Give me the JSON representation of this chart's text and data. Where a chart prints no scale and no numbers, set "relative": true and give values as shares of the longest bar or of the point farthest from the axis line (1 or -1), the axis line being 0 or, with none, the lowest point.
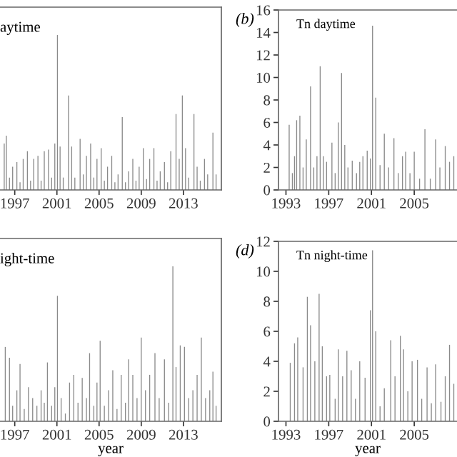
{
  "chart_data": [
    {
      "type": "bar",
      "relative": true,
      "tick_labels": "x",
      "annotations": [
        "aytime"
      ],
      "grid": false,
      "xlim": [
        1995.6,
        2016.6
      ],
      "xticks": [
        1997,
        2001,
        2005,
        2009,
        2013
      ],
      "x": [
        1996.0,
        1996.2,
        1996.5,
        1996.8,
        1997.2,
        1997.5,
        1997.8,
        1998.2,
        1998.5,
        1998.8,
        1999.2,
        1999.5,
        1999.8,
        2000.2,
        2000.5,
        2000.8,
        2001.05,
        2001.3,
        2001.6,
        2002.1,
        2002.4,
        2002.7,
        2003.2,
        2003.5,
        2003.8,
        2004.2,
        2004.5,
        2004.8,
        2005.2,
        2005.5,
        2005.8,
        2006.2,
        2006.5,
        2006.8,
        2007.2,
        2007.5,
        2007.8,
        2008.2,
        2008.5,
        2008.8,
        2009.2,
        2009.5,
        2009.8,
        2010.2,
        2010.5,
        2010.8,
        2011.2,
        2011.5,
        2011.8,
        2012.3,
        2012.6,
        2012.9,
        2013.2,
        2013.5,
        2014.0,
        2014.3,
        2014.6,
        2015.0,
        2015.3,
        2015.8,
        2016.1
      ],
      "series": [
        {
          "color": "#8a8a8a",
          "values": [
            0.3,
            0.35,
            0.08,
            0.15,
            0.18,
            0.05,
            0.2,
            0.25,
            0.06,
            0.2,
            0.22,
            0.06,
            0.25,
            0.26,
            0.08,
            0.3,
            1.0,
            0.28,
            0.08,
            0.61,
            0.28,
            0.08,
            0.33,
            0.1,
            0.22,
            0.3,
            0.08,
            0.2,
            0.27,
            0.06,
            0.15,
            0.22,
            0.05,
            0.1,
            0.47,
            0.05,
            0.12,
            0.2,
            0.06,
            0.15,
            0.27,
            0.07,
            0.2,
            0.27,
            0.06,
            0.12,
            0.18,
            0.05,
            0.25,
            0.49,
            0.2,
            0.61,
            0.27,
            0.08,
            0.49,
            0.15,
            0.06,
            0.2,
            0.1,
            0.37,
            0.1
          ]
        }
      ]
    },
    {
      "type": "bar",
      "annotations": [
        "(b)",
        "Tn daytime"
      ],
      "grid": false,
      "xlim": [
        1992.3,
        2009.0
      ],
      "xticks": [
        1993,
        1997,
        2001,
        2005
      ],
      "ylim": [
        0,
        16
      ],
      "yticks": [
        0,
        2,
        4,
        6,
        8,
        10,
        12,
        14,
        16
      ],
      "x": [
        1993.3,
        1993.6,
        1993.8,
        1994.0,
        1994.3,
        1994.6,
        1994.9,
        1995.3,
        1995.6,
        1995.9,
        1996.2,
        1996.5,
        1996.8,
        1997.3,
        1997.6,
        1997.9,
        1998.2,
        1998.5,
        1998.8,
        1999.2,
        1999.6,
        1999.9,
        2000.2,
        2000.6,
        2000.9,
        2001.1,
        2001.4,
        2001.8,
        2002.2,
        2002.6,
        2003.1,
        2003.5,
        2003.9,
        2004.2,
        2004.6,
        2005.0,
        2005.5,
        2006.0,
        2006.5,
        2007.0,
        2007.4,
        2007.9,
        2008.3,
        2008.7
      ],
      "series": [
        {
          "color": "#8a8a8a",
          "values": [
            5.8,
            1.5,
            3,
            6.2,
            6.6,
            2,
            4.5,
            9.2,
            2,
            3,
            11.0,
            3,
            2.5,
            4.2,
            1.5,
            6,
            10.4,
            4,
            2,
            2.6,
            1.5,
            2.5,
            3,
            3.5,
            2.8,
            14.6,
            8.2,
            2.2,
            5.0,
            2,
            4.6,
            1.5,
            3,
            3.4,
            1.5,
            3.4,
            1,
            5.4,
            1,
            4.5,
            2,
            3.9,
            2.5,
            3
          ]
        }
      ]
    },
    {
      "type": "bar",
      "relative": true,
      "tick_labels": "x",
      "xlabel": "year",
      "annotations": [
        "ight-time"
      ],
      "grid": false,
      "xlim": [
        1995.6,
        2016.6
      ],
      "xticks": [
        1997,
        2001,
        2005,
        2009,
        2013
      ],
      "x": [
        1996.1,
        1996.5,
        1996.8,
        1997.2,
        1997.5,
        1997.9,
        1998.3,
        1998.7,
        1999.1,
        1999.5,
        1999.8,
        2000.1,
        2000.5,
        2000.8,
        2001.05,
        2001.4,
        2001.8,
        2002.2,
        2002.6,
        2003.0,
        2003.4,
        2003.8,
        2004.1,
        2004.5,
        2004.8,
        2005.1,
        2005.5,
        2005.9,
        2006.3,
        2006.7,
        2007.1,
        2007.5,
        2007.8,
        2008.2,
        2008.6,
        2009.0,
        2009.4,
        2009.8,
        2010.3,
        2010.7,
        2011.2,
        2011.6,
        2012.0,
        2012.3,
        2012.7,
        2013.1,
        2013.5,
        2013.9,
        2014.3,
        2014.7,
        2015.1,
        2015.5,
        2015.8,
        2016.1
      ],
      "series": [
        {
          "color": "#8a8a8a",
          "values": [
            0.48,
            0.41,
            0.1,
            0.2,
            0.37,
            0.08,
            0.22,
            0.15,
            0.1,
            0.2,
            0.12,
            0.38,
            0.1,
            0.22,
            0.81,
            0.15,
            0.05,
            0.25,
            0.3,
            0.12,
            0.28,
            0.15,
            0.44,
            0.1,
            0.25,
            0.52,
            0.1,
            0.2,
            0.33,
            0.08,
            0.3,
            0.12,
            0.4,
            0.3,
            0.15,
            0.54,
            0.2,
            0.3,
            0.44,
            0.15,
            0.4,
            0.12,
            1.0,
            0.35,
            0.49,
            0.48,
            0.15,
            0.2,
            0.3,
            0.54,
            0.15,
            0.2,
            0.32,
            0.1
          ]
        }
      ]
    },
    {
      "type": "bar",
      "xlabel": "year",
      "annotations": [
        "(d)",
        "Tn night-time"
      ],
      "grid": false,
      "xlim": [
        1992.3,
        2009.0
      ],
      "xticks": [
        1993,
        1997,
        2001,
        2005
      ],
      "ylim": [
        0,
        12
      ],
      "yticks": [
        0,
        2,
        4,
        6,
        8,
        10,
        12
      ],
      "x": [
        1993.4,
        1993.8,
        1994.1,
        1994.6,
        1995.0,
        1995.3,
        1995.7,
        1996.1,
        1996.4,
        1996.8,
        1997.1,
        1997.6,
        1997.9,
        1998.3,
        1998.7,
        1999.1,
        1999.5,
        1999.9,
        2000.4,
        2000.9,
        2001.1,
        2001.4,
        2001.8,
        2002.2,
        2002.8,
        2003.2,
        2003.7,
        2004.0,
        2004.4,
        2004.8,
        2005.3,
        2005.7,
        2006.2,
        2006.6,
        2007.0,
        2007.5,
        2007.9,
        2008.3,
        2008.7
      ],
      "series": [
        {
          "color": "#8a8a8a",
          "values": [
            3.9,
            5.2,
            5.6,
            3.6,
            8.3,
            6.4,
            4,
            8.5,
            5,
            3,
            3.1,
            1.5,
            4.8,
            3,
            4.7,
            3.4,
            1.5,
            4,
            2.9,
            7.4,
            11.4,
            6,
            1,
            2.2,
            5.4,
            3,
            5.7,
            4.8,
            2,
            4.0,
            4.1,
            1.5,
            3.6,
            1.2,
            3.8,
            1.3,
            3,
            5.1,
            2.5
          ]
        }
      ]
    }
  ]
}
